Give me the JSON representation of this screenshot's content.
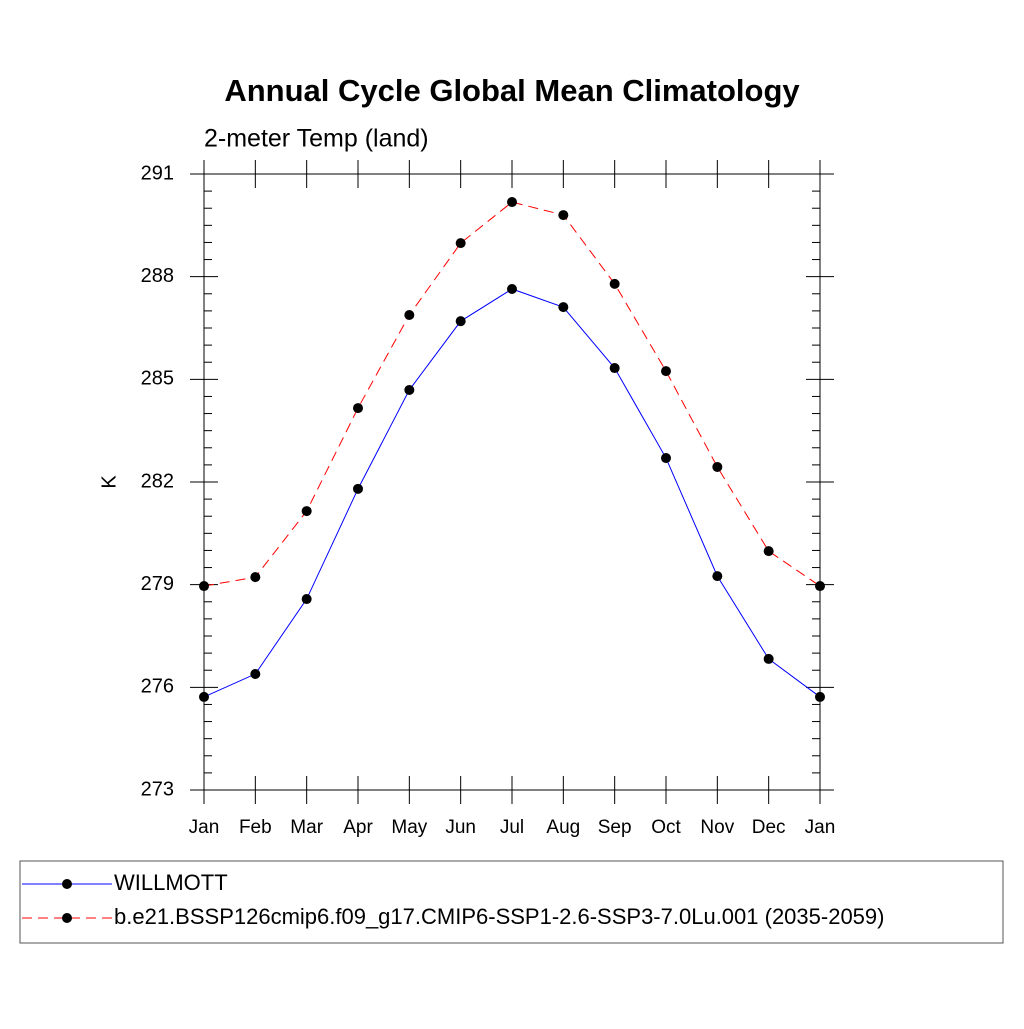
{
  "chart_data": {
    "type": "line",
    "title": "Annual Cycle Global Mean Climatology",
    "subtitle": "2-meter Temp (land)",
    "y_label": "K",
    "categories": [
      "Jan",
      "Feb",
      "Mar",
      "Apr",
      "May",
      "Jun",
      "Jul",
      "Aug",
      "Sep",
      "Oct",
      "Nov",
      "Dec",
      "Jan"
    ],
    "series": [
      {
        "name": "WILLMOTT",
        "color": "#0000ff",
        "line_style": "solid",
        "values": [
          275.72,
          276.39,
          278.58,
          281.8,
          284.69,
          286.7,
          287.64,
          287.11,
          285.33,
          282.7,
          279.25,
          276.83,
          275.72
        ]
      },
      {
        "name": "b.e21.BSSP126cmip6.f09_g17.CMIP6-SSP1-2.6-SSP3-7.0Lu.001 (2035-2059)",
        "color": "#ff0000",
        "line_style": "dashed",
        "values": [
          278.96,
          279.22,
          281.15,
          284.16,
          286.88,
          288.98,
          290.18,
          289.8,
          287.79,
          285.24,
          282.44,
          279.98,
          278.96
        ]
      }
    ],
    "ylim": [
      273,
      291
    ],
    "yticks": [
      273,
      276,
      279,
      282,
      285,
      288,
      291
    ],
    "legend": "bottom"
  }
}
